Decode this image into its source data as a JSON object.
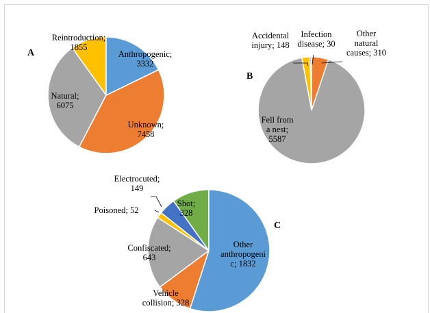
{
  "chart_data": [
    {
      "type": "pie",
      "panel": "A",
      "categories": [
        "Anthropogenic",
        "Unknown",
        "Natural",
        "Reintroduction"
      ],
      "values": [
        3332,
        7458,
        6075,
        1855
      ],
      "value_labels": [
        "Anthropogenic;\n3332",
        "Unknown;\n7458",
        "Natural;\n6075",
        "Reintroduction;\n1855"
      ],
      "colors": [
        "#5b9bd5",
        "#ed7d31",
        "#a5a5a5",
        "#ffc000"
      ]
    },
    {
      "type": "pie",
      "panel": "B",
      "categories": [
        "Other natural causes",
        "Fell from a nest",
        "Accidental injury",
        "Infection disease"
      ],
      "values": [
        310,
        5587,
        148,
        30
      ],
      "value_labels": [
        "Other\nnatural\ncauses; 310",
        "Fell from\na nest;\n5587",
        "Accidental\ninjury; 148",
        "Infection\ndisease; 30"
      ],
      "colors": [
        "#ed7d31",
        "#a5a5a5",
        "#ffc000",
        "#5b9bd5"
      ]
    },
    {
      "type": "pie",
      "panel": "C",
      "categories": [
        "Other anthropogenic",
        "Vehicle collision",
        "Confiscated",
        "Poisoned",
        "Electrocuted",
        "Shot"
      ],
      "values": [
        1832,
        328,
        643,
        52,
        149,
        328
      ],
      "value_labels": [
        "Other\nanthropogeni\nc; 1832",
        "Vehicle\ncollision; 328",
        "Confiscated;\n643",
        "Poisoned; 52",
        "Electrocuted;\n149",
        "Shot;\n328"
      ],
      "colors": [
        "#5b9bd5",
        "#ed7d31",
        "#a5a5a5",
        "#ffc000",
        "#4472c4",
        "#70ad47"
      ]
    }
  ]
}
